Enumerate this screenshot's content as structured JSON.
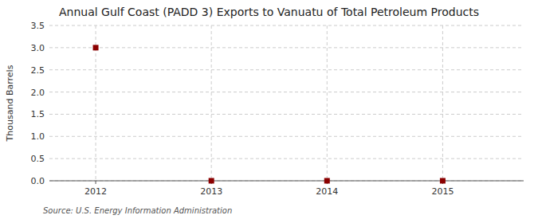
{
  "chart_data": {
    "type": "scatter",
    "title": "Annual Gulf Coast (PADD 3) Exports to Vanuatu of Total Petroleum Products",
    "y_label": "Thousand Barrels",
    "annotations": [
      "Source: U.S. Energy Information Administration"
    ],
    "x": [
      2012,
      2013,
      2014,
      2015
    ],
    "values": [
      3.0,
      0.0,
      0.0,
      0.0
    ],
    "color": "#8b0000",
    "marker": "square",
    "xlim": [
      2011.6,
      2015.7
    ],
    "ylim": [
      0.0,
      3.5
    ],
    "xticks": [
      2012,
      2013,
      2014,
      2015
    ],
    "yticks": [
      {
        "value": 0.0,
        "label": "0.0"
      },
      0.5,
      {
        "value": 1.0,
        "label": "1.0"
      },
      1.5,
      {
        "value": 2.0,
        "label": "2.0"
      },
      2.5,
      {
        "value": 3.0,
        "label": "3.0"
      },
      3.5
    ],
    "grid": true
  }
}
